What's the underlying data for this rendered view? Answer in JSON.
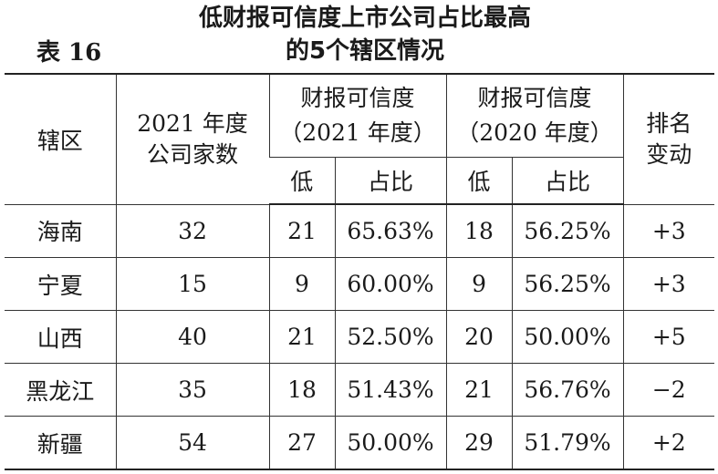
{
  "table_label": "表 16",
  "title": {
    "line1": "低财报可信度上市公司占比最高",
    "line2": "的5个辖区情况"
  },
  "headers": {
    "region": "辖区",
    "company_count_line1": "2021 年度",
    "company_count_line2": "公司家数",
    "cred2021_line1": "财报可信度",
    "cred2021_line2": "（2021 年度）",
    "cred2020_line1": "财报可信度",
    "cred2020_line2": "（2020 年度）",
    "rank_line1": "排名",
    "rank_line2": "变动",
    "low": "低",
    "share": "占比"
  },
  "rows": [
    {
      "region": "海南",
      "count": "32",
      "low_2021": "21",
      "share_2021": "65.63%",
      "low_2020": "18",
      "share_2020": "56.25%",
      "rank_change": "+3"
    },
    {
      "region": "宁夏",
      "count": "15",
      "low_2021": "9",
      "share_2021": "60.00%",
      "low_2020": "9",
      "share_2020": "56.25%",
      "rank_change": "+3"
    },
    {
      "region": "山西",
      "count": "40",
      "low_2021": "21",
      "share_2021": "52.50%",
      "low_2020": "20",
      "share_2020": "50.00%",
      "rank_change": "+5"
    },
    {
      "region": "黑龙江",
      "count": "35",
      "low_2021": "18",
      "share_2021": "51.43%",
      "low_2020": "21",
      "share_2020": "56.76%",
      "rank_change": "−2"
    },
    {
      "region": "新疆",
      "count": "54",
      "low_2021": "27",
      "share_2021": "50.00%",
      "low_2020": "29",
      "share_2020": "51.79%",
      "rank_change": "+2"
    }
  ]
}
